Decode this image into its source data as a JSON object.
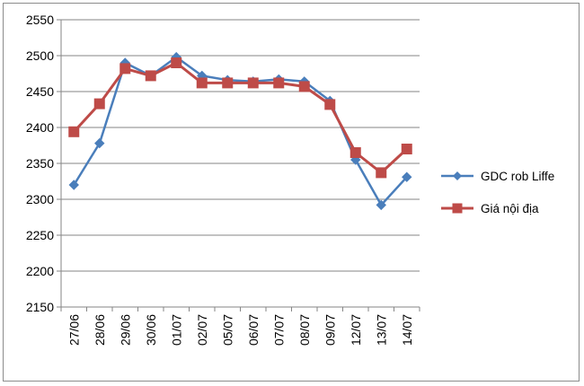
{
  "chart_data": {
    "type": "line",
    "title": "",
    "xlabel": "",
    "ylabel": "",
    "categories": [
      "27/06",
      "28/06",
      "29/06",
      "30/06",
      "01/07",
      "02/07",
      "05/07",
      "06/07",
      "07/07",
      "08/07",
      "09/07",
      "12/07",
      "13/07",
      "14/07"
    ],
    "ylim": [
      2150,
      2550
    ],
    "yticks": [
      2150,
      2200,
      2250,
      2300,
      2350,
      2400,
      2450,
      2500,
      2550
    ],
    "grid": "horizontal",
    "legend_position": "right",
    "series": [
      {
        "name": "GDC rob Liffe",
        "color": "#4a7ebb",
        "marker": "diamond",
        "values": [
          2320,
          2378,
          2490,
          2472,
          2498,
          2472,
          2466,
          2464,
          2467,
          2464,
          2437,
          2355,
          2292,
          2331
        ]
      },
      {
        "name": "Giá nội địa",
        "color": "#be4b48",
        "marker": "square",
        "values": [
          2394,
          2433,
          2482,
          2472,
          2490,
          2462,
          2462,
          2462,
          2462,
          2457,
          2432,
          2365,
          2337,
          2370
        ]
      }
    ]
  }
}
